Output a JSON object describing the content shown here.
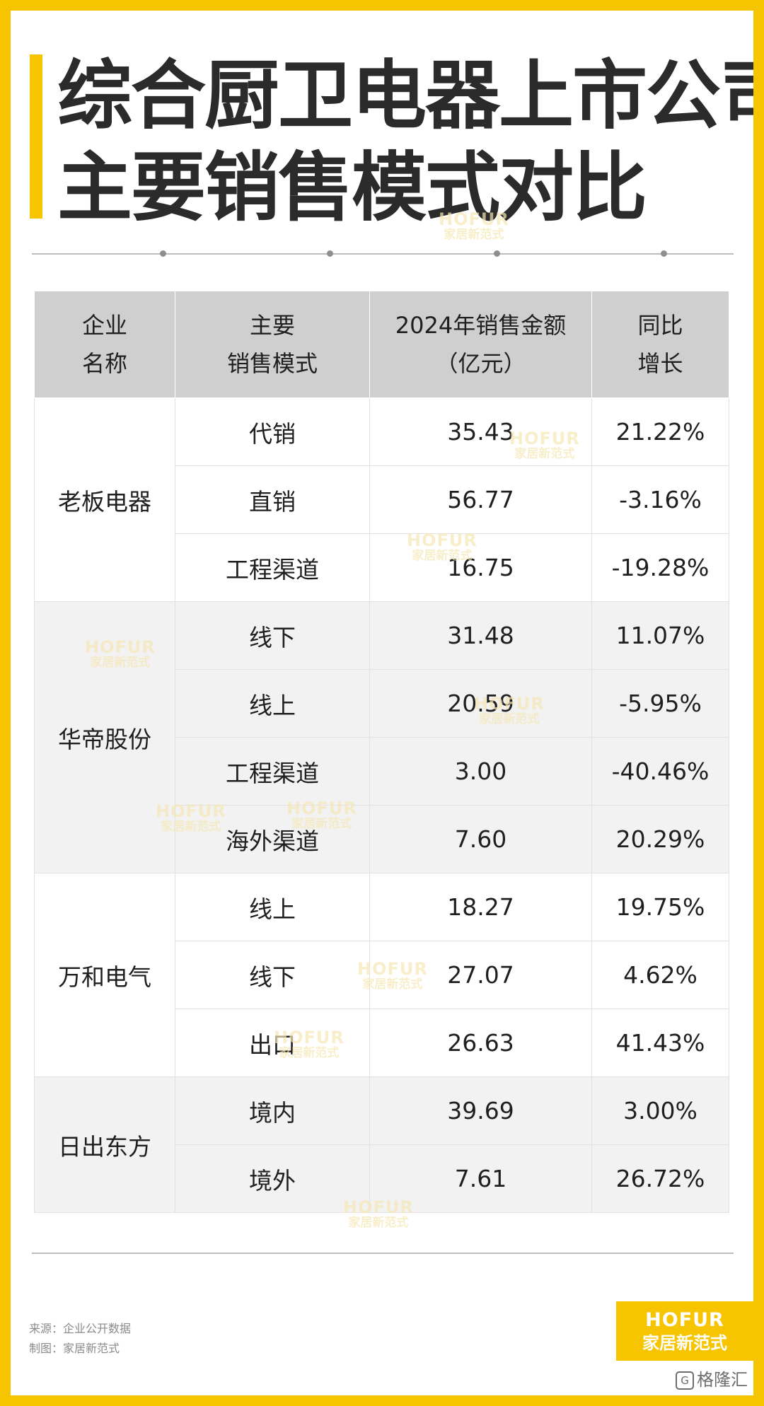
{
  "title": {
    "line1": "综合厨卫电器上市公司",
    "line2": "主要销售模式对比"
  },
  "table": {
    "headers": [
      {
        "line1": "企业",
        "line2": "名称"
      },
      {
        "line1": "主要",
        "line2": "销售模式"
      },
      {
        "line1": "2024年销售金额",
        "line2": "（亿元）"
      },
      {
        "line1": "同比",
        "line2": "增长"
      }
    ],
    "groups": [
      {
        "company": "老板电器",
        "rows": [
          {
            "mode": "代销",
            "amount": "35.43",
            "growth": "21.22%"
          },
          {
            "mode": "直销",
            "amount": "56.77",
            "growth": "-3.16%"
          },
          {
            "mode": "工程渠道",
            "amount": "16.75",
            "growth": "-19.28%"
          }
        ]
      },
      {
        "company": "华帝股份",
        "rows": [
          {
            "mode": "线下",
            "amount": "31.48",
            "growth": "11.07%"
          },
          {
            "mode": "线上",
            "amount": "20.59",
            "growth": "-5.95%"
          },
          {
            "mode": "工程渠道",
            "amount": "3.00",
            "growth": "-40.46%"
          },
          {
            "mode": "海外渠道",
            "amount": "7.60",
            "growth": "20.29%"
          }
        ]
      },
      {
        "company": "万和电气",
        "rows": [
          {
            "mode": "线上",
            "amount": "18.27",
            "growth": "19.75%"
          },
          {
            "mode": "线下",
            "amount": "27.07",
            "growth": "4.62%"
          },
          {
            "mode": "出口",
            "amount": "26.63",
            "growth": "41.43%"
          }
        ]
      },
      {
        "company": "日出东方",
        "rows": [
          {
            "mode": "境内",
            "amount": "39.69",
            "growth": "3.00%"
          },
          {
            "mode": "境外",
            "amount": "7.61",
            "growth": "26.72%"
          }
        ]
      }
    ]
  },
  "footer": {
    "source": "来源：企业公开数据",
    "made_by": "制图：家居新范式"
  },
  "logo": {
    "line1": "HOFUR",
    "line2": "家居新范式"
  },
  "watermark": {
    "line1": "HOFUR",
    "line2": "家居新范式"
  },
  "corner_badge": "格隆汇",
  "colors": {
    "accent_yellow": "#f7c400",
    "negative_green": "#16a34a",
    "header_gray": "#cfcfcf",
    "alt_row_gray": "#f2f2f2"
  }
}
